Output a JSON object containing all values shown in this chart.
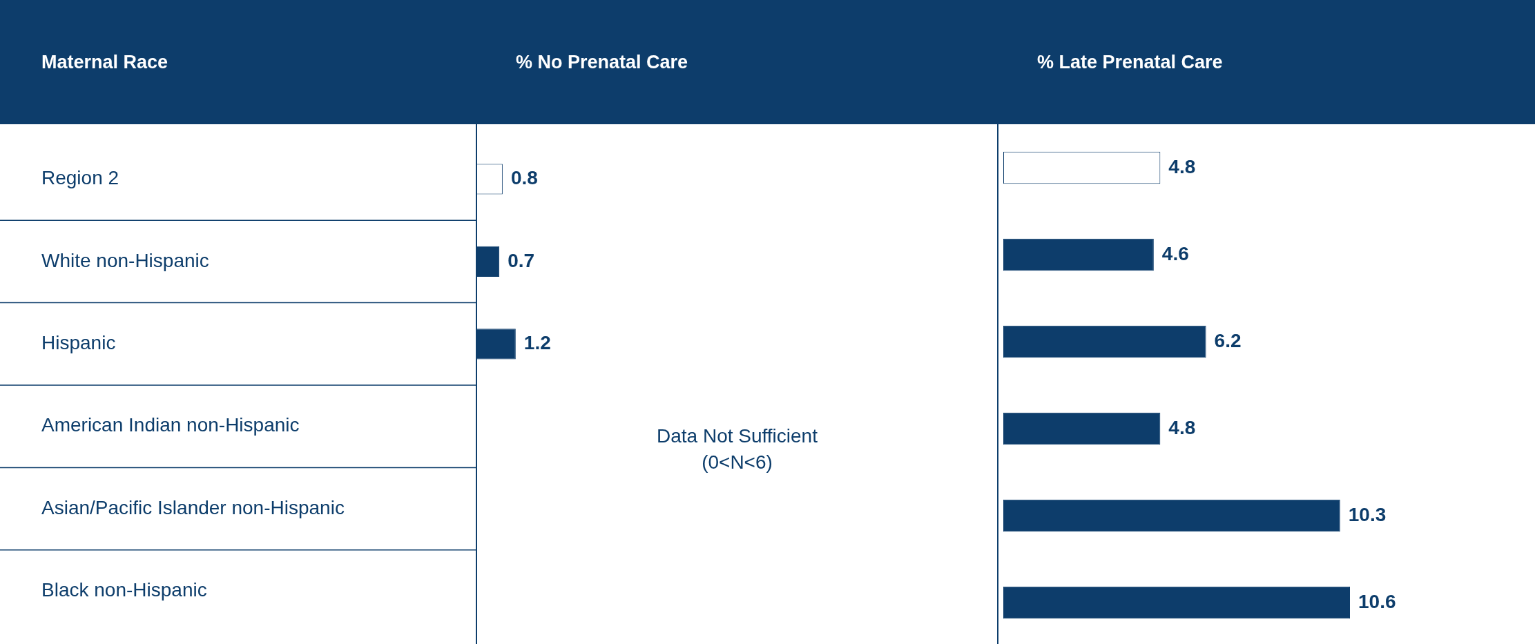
{
  "chart_data": [
    {
      "type": "bar",
      "orientation": "horizontal",
      "title": "% No Prenatal Care",
      "ylabel": "Maternal Race",
      "categories": [
        "Region 2",
        "White non-Hispanic",
        "Hispanic",
        "American Indian non-Hispanic",
        "Asian/Pacific Islander non-Hispanic",
        "Black non-Hispanic"
      ],
      "values": [
        0.8,
        0.7,
        1.2,
        null,
        null,
        null
      ],
      "colors": [
        "#ffffff",
        "#0d3d6b",
        "#0d3d6b",
        "#0d3d6b",
        "#0d3d6b",
        "#0d3d6b"
      ],
      "data_labels": true,
      "tick_labels": "y",
      "legend": false,
      "annotations": [
        "Data Not Sufficient (0<N<6)"
      ]
    },
    {
      "type": "bar",
      "orientation": "horizontal",
      "title": "% Late Prenatal Care",
      "categories": [
        null,
        null,
        null,
        null,
        null,
        null
      ],
      "values": [
        4.8,
        4.6,
        6.2,
        4.8,
        10.3,
        10.6
      ],
      "colors": [
        "#ffffff",
        "#0d3d6b",
        "#0d3d6b",
        "#0d3d6b",
        "#0d3d6b",
        "#0d3d6b"
      ],
      "data_labels": true,
      "tick_labels": false,
      "legend": false
    }
  ]
}
